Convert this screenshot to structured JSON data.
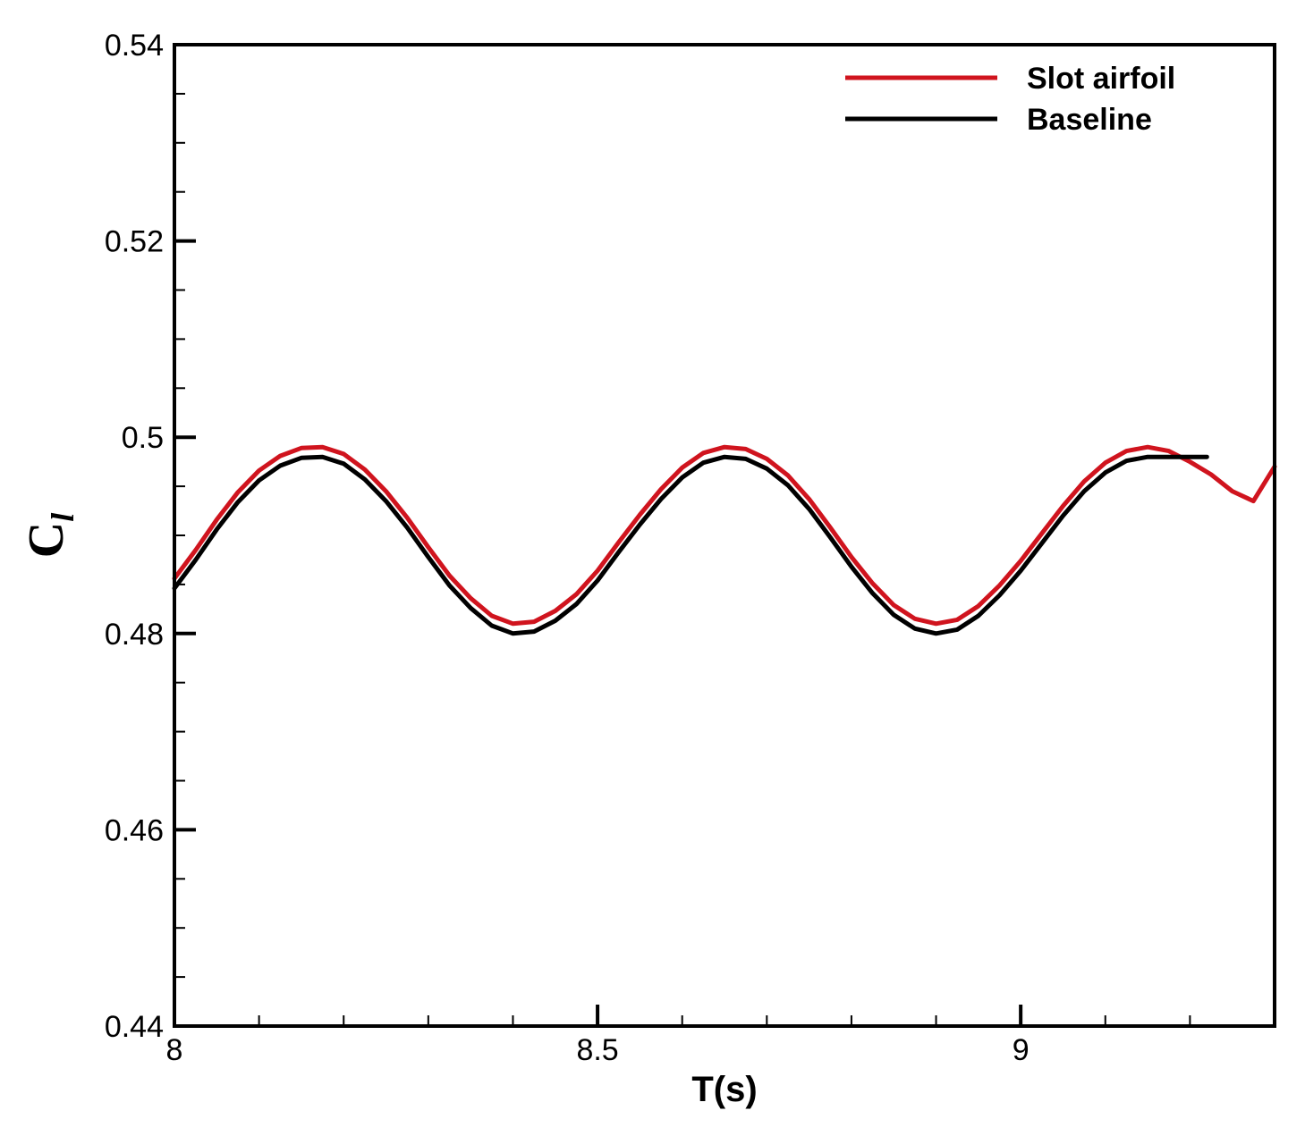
{
  "chart_data": {
    "type": "line",
    "xlabel": "T(s)",
    "ylabel": {
      "main": "C",
      "sub": "l"
    },
    "xlim": [
      8,
      9.3
    ],
    "ylim": [
      0.44,
      0.54
    ],
    "x_ticks": [
      {
        "value": 8,
        "label": "8"
      },
      {
        "value": 8.5,
        "label": "8.5"
      },
      {
        "value": 9,
        "label": "9"
      }
    ],
    "x_minor_step": 0.1,
    "y_ticks": [
      {
        "value": 0.44,
        "label": "0.44"
      },
      {
        "value": 0.46,
        "label": "0.46"
      },
      {
        "value": 0.48,
        "label": "0.48"
      },
      {
        "value": 0.5,
        "label": "0.5"
      },
      {
        "value": 0.52,
        "label": "0.52"
      },
      {
        "value": 0.54,
        "label": "0.54"
      }
    ],
    "y_minor_step": 0.005,
    "grid": false,
    "legend_position": "top-right",
    "series": [
      {
        "name": "Slot airfoil",
        "color": "#d0141e",
        "x": [
          8.0,
          8.025,
          8.05,
          8.075,
          8.1,
          8.125,
          8.15,
          8.175,
          8.2,
          8.225,
          8.25,
          8.275,
          8.3,
          8.325,
          8.35,
          8.375,
          8.4,
          8.425,
          8.45,
          8.475,
          8.5,
          8.525,
          8.55,
          8.575,
          8.6,
          8.625,
          8.65,
          8.675,
          8.7,
          8.725,
          8.75,
          8.775,
          8.8,
          8.825,
          8.85,
          8.875,
          8.9,
          8.925,
          8.95,
          8.975,
          9.0,
          9.025,
          9.05,
          9.075,
          9.1,
          9.125,
          9.15,
          9.175,
          9.2,
          9.225,
          9.25,
          9.275,
          9.3
        ],
        "y": [
          0.4856,
          0.4885,
          0.4916,
          0.4944,
          0.4966,
          0.4981,
          0.4989,
          0.499,
          0.4983,
          0.4967,
          0.4945,
          0.4918,
          0.4888,
          0.4859,
          0.4836,
          0.4818,
          0.481,
          0.4812,
          0.4823,
          0.484,
          0.4864,
          0.4893,
          0.4921,
          0.4947,
          0.4969,
          0.4984,
          0.499,
          0.4988,
          0.4978,
          0.4961,
          0.4937,
          0.4908,
          0.4878,
          0.4851,
          0.4829,
          0.4815,
          0.481,
          0.4814,
          0.4828,
          0.4849,
          0.4874,
          0.4902,
          0.493,
          0.4955,
          0.4974,
          0.4986,
          0.499,
          0.4986,
          0.4975,
          0.4962,
          0.4945,
          0.4935,
          0.497
        ]
      },
      {
        "name": "Baseline",
        "color": "#000000",
        "x": [
          8.0,
          8.025,
          8.05,
          8.075,
          8.1,
          8.125,
          8.15,
          8.175,
          8.2,
          8.225,
          8.25,
          8.275,
          8.3,
          8.325,
          8.35,
          8.375,
          8.4,
          8.425,
          8.45,
          8.475,
          8.5,
          8.525,
          8.55,
          8.575,
          8.6,
          8.625,
          8.65,
          8.675,
          8.7,
          8.725,
          8.75,
          8.775,
          8.8,
          8.825,
          8.85,
          8.875,
          8.9,
          8.925,
          8.95,
          8.975,
          9.0,
          9.025,
          9.05,
          9.075,
          9.1,
          9.125,
          9.15,
          9.175,
          9.2,
          9.22
        ],
        "y": [
          0.4846,
          0.4875,
          0.4906,
          0.4934,
          0.4956,
          0.4971,
          0.4979,
          0.498,
          0.4973,
          0.4957,
          0.4935,
          0.4908,
          0.4878,
          0.4849,
          0.4826,
          0.4808,
          0.48,
          0.4802,
          0.4813,
          0.483,
          0.4854,
          0.4883,
          0.4911,
          0.4937,
          0.4959,
          0.4974,
          0.498,
          0.4978,
          0.4968,
          0.4951,
          0.4927,
          0.4898,
          0.4868,
          0.4841,
          0.4819,
          0.4805,
          0.48,
          0.4804,
          0.4818,
          0.4839,
          0.4864,
          0.4892,
          0.492,
          0.4945,
          0.4964,
          0.4976,
          0.498,
          0.498,
          0.498,
          0.498
        ]
      }
    ]
  }
}
